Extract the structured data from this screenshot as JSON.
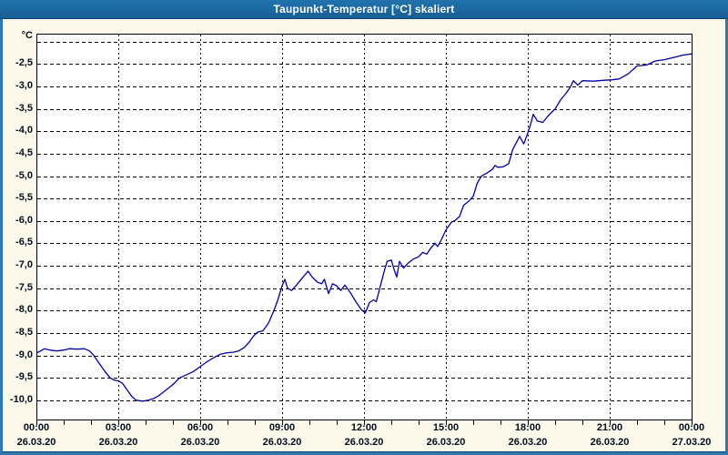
{
  "window": {
    "title": "Taupunkt-Temperatur [°C] skaliert"
  },
  "colors": {
    "title_bar": "#1B6AA5",
    "outer_frame": "#2E79B2",
    "background": "#FCF8EA",
    "plot_background": "#FFFFFF",
    "grid": "#000000",
    "line": "#0000A8",
    "text": "#00101F",
    "title_text": "#FFFFFF"
  },
  "chart_data": {
    "type": "line",
    "title": "Taupunkt-Temperatur [°C] skaliert",
    "xlabel": "",
    "ylabel": "°C",
    "grid": "dashed",
    "legend_position": "none",
    "y_axis": {
      "unit": "°C",
      "top_value": -1.82,
      "bottom_value": -10.43,
      "gridline_step": 0.5,
      "gridlines": [
        {
          "value": -2.0,
          "label": ""
        },
        {
          "value": -2.5,
          "label": "-2,5"
        },
        {
          "value": -3.0,
          "label": "-3,0"
        },
        {
          "value": -3.5,
          "label": "-3,5"
        },
        {
          "value": -4.0,
          "label": "-4,0"
        },
        {
          "value": -4.5,
          "label": "-4,5"
        },
        {
          "value": -5.0,
          "label": "-5,0"
        },
        {
          "value": -5.5,
          "label": "-5,5"
        },
        {
          "value": -6.0,
          "label": "-6,0"
        },
        {
          "value": -6.5,
          "label": "-6,5"
        },
        {
          "value": -7.0,
          "label": "-7,0"
        },
        {
          "value": -7.5,
          "label": "-7,5"
        },
        {
          "value": -8.0,
          "label": "-8,0"
        },
        {
          "value": -8.5,
          "label": "-8,5"
        },
        {
          "value": -9.0,
          "label": "-9,0"
        },
        {
          "value": -9.5,
          "label": "-9,5"
        },
        {
          "value": -10.0,
          "label": "-10,0"
        }
      ]
    },
    "x_axis": {
      "range_hours": [
        0,
        24
      ],
      "major_step_hours": 3,
      "minor_tick_hours": 1,
      "ticks": [
        {
          "hours": 0,
          "time": "00:00",
          "date": "26.03.20"
        },
        {
          "hours": 3,
          "time": "03:00",
          "date": "26.03.20"
        },
        {
          "hours": 6,
          "time": "06:00",
          "date": "26.03.20"
        },
        {
          "hours": 9,
          "time": "09:00",
          "date": "26.03.20"
        },
        {
          "hours": 12,
          "time": "12:00",
          "date": "26.03.20"
        },
        {
          "hours": 15,
          "time": "15:00",
          "date": "26.03.20"
        },
        {
          "hours": 18,
          "time": "18:00",
          "date": "26.03.20"
        },
        {
          "hours": 21,
          "time": "21:00",
          "date": "26.03.20"
        },
        {
          "hours": 24,
          "time": "00:00",
          "date": "27.03.20"
        }
      ]
    },
    "series": [
      {
        "name": "Taupunkt-Temperatur",
        "color": "#0000A8",
        "points": [
          [
            0,
            -8.95
          ],
          [
            0.15,
            -8.9
          ],
          [
            0.3,
            -8.85
          ],
          [
            0.5,
            -8.88
          ],
          [
            0.75,
            -8.9
          ],
          [
            1,
            -8.88
          ],
          [
            1.2,
            -8.85
          ],
          [
            1.5,
            -8.86
          ],
          [
            1.75,
            -8.85
          ],
          [
            1.95,
            -8.9
          ],
          [
            2.1,
            -9.0
          ],
          [
            2.3,
            -9.18
          ],
          [
            2.5,
            -9.35
          ],
          [
            2.7,
            -9.5
          ],
          [
            2.85,
            -9.55
          ],
          [
            3,
            -9.57
          ],
          [
            3.15,
            -9.62
          ],
          [
            3.3,
            -9.75
          ],
          [
            3.5,
            -9.92
          ],
          [
            3.65,
            -10.0
          ],
          [
            3.9,
            -10.02
          ],
          [
            4.1,
            -10.0
          ],
          [
            4.3,
            -9.96
          ],
          [
            4.5,
            -9.89
          ],
          [
            4.75,
            -9.77
          ],
          [
            5,
            -9.65
          ],
          [
            5.25,
            -9.5
          ],
          [
            5.5,
            -9.43
          ],
          [
            5.75,
            -9.36
          ],
          [
            6,
            -9.25
          ],
          [
            6.25,
            -9.14
          ],
          [
            6.5,
            -9.05
          ],
          [
            6.75,
            -8.97
          ],
          [
            7,
            -8.94
          ],
          [
            7.2,
            -8.93
          ],
          [
            7.4,
            -8.9
          ],
          [
            7.6,
            -8.83
          ],
          [
            7.8,
            -8.7
          ],
          [
            7.95,
            -8.57
          ],
          [
            8.1,
            -8.48
          ],
          [
            8.3,
            -8.45
          ],
          [
            8.5,
            -8.28
          ],
          [
            8.7,
            -8.0
          ],
          [
            8.85,
            -7.75
          ],
          [
            9,
            -7.45
          ],
          [
            9.1,
            -7.3
          ],
          [
            9.2,
            -7.5
          ],
          [
            9.35,
            -7.55
          ],
          [
            9.5,
            -7.45
          ],
          [
            9.7,
            -7.3
          ],
          [
            9.95,
            -7.12
          ],
          [
            10.1,
            -7.25
          ],
          [
            10.3,
            -7.37
          ],
          [
            10.45,
            -7.4
          ],
          [
            10.55,
            -7.3
          ],
          [
            10.7,
            -7.62
          ],
          [
            10.85,
            -7.4
          ],
          [
            11,
            -7.45
          ],
          [
            11.15,
            -7.55
          ],
          [
            11.3,
            -7.43
          ],
          [
            11.5,
            -7.6
          ],
          [
            11.7,
            -7.8
          ],
          [
            11.9,
            -7.98
          ],
          [
            12.05,
            -8.05
          ],
          [
            12.2,
            -7.82
          ],
          [
            12.35,
            -7.76
          ],
          [
            12.45,
            -7.8
          ],
          [
            12.6,
            -7.45
          ],
          [
            12.75,
            -7.1
          ],
          [
            12.85,
            -6.9
          ],
          [
            13,
            -6.87
          ],
          [
            13.1,
            -7.08
          ],
          [
            13.2,
            -7.25
          ],
          [
            13.3,
            -6.9
          ],
          [
            13.45,
            -7.05
          ],
          [
            13.6,
            -6.95
          ],
          [
            13.8,
            -6.85
          ],
          [
            14,
            -6.8
          ],
          [
            14.15,
            -6.7
          ],
          [
            14.3,
            -6.74
          ],
          [
            14.45,
            -6.6
          ],
          [
            14.6,
            -6.5
          ],
          [
            14.7,
            -6.57
          ],
          [
            14.85,
            -6.4
          ],
          [
            15,
            -6.2
          ],
          [
            15.2,
            -6.03
          ],
          [
            15.35,
            -5.98
          ],
          [
            15.5,
            -5.9
          ],
          [
            15.65,
            -5.65
          ],
          [
            15.85,
            -5.55
          ],
          [
            16,
            -5.45
          ],
          [
            16.15,
            -5.15
          ],
          [
            16.3,
            -5.0
          ],
          [
            16.5,
            -4.93
          ],
          [
            16.7,
            -4.85
          ],
          [
            16.8,
            -4.76
          ],
          [
            16.9,
            -4.8
          ],
          [
            17.1,
            -4.79
          ],
          [
            17.3,
            -4.72
          ],
          [
            17.45,
            -4.4
          ],
          [
            17.6,
            -4.23
          ],
          [
            17.7,
            -4.11
          ],
          [
            17.85,
            -4.28
          ],
          [
            17.95,
            -4.12
          ],
          [
            18.1,
            -3.85
          ],
          [
            18.2,
            -3.62
          ],
          [
            18.35,
            -3.77
          ],
          [
            18.55,
            -3.8
          ],
          [
            18.75,
            -3.65
          ],
          [
            19,
            -3.5
          ],
          [
            19.2,
            -3.3
          ],
          [
            19.4,
            -3.15
          ],
          [
            19.55,
            -3.02
          ],
          [
            19.67,
            -2.87
          ],
          [
            19.83,
            -2.97
          ],
          [
            20,
            -2.87
          ],
          [
            20.4,
            -2.88
          ],
          [
            20.8,
            -2.86
          ],
          [
            21.1,
            -2.85
          ],
          [
            21.35,
            -2.83
          ],
          [
            21.67,
            -2.72
          ],
          [
            22,
            -2.54
          ],
          [
            22.35,
            -2.52
          ],
          [
            22.67,
            -2.43
          ],
          [
            23,
            -2.4
          ],
          [
            23.35,
            -2.35
          ],
          [
            23.67,
            -2.3
          ],
          [
            24,
            -2.27
          ]
        ]
      }
    ]
  }
}
